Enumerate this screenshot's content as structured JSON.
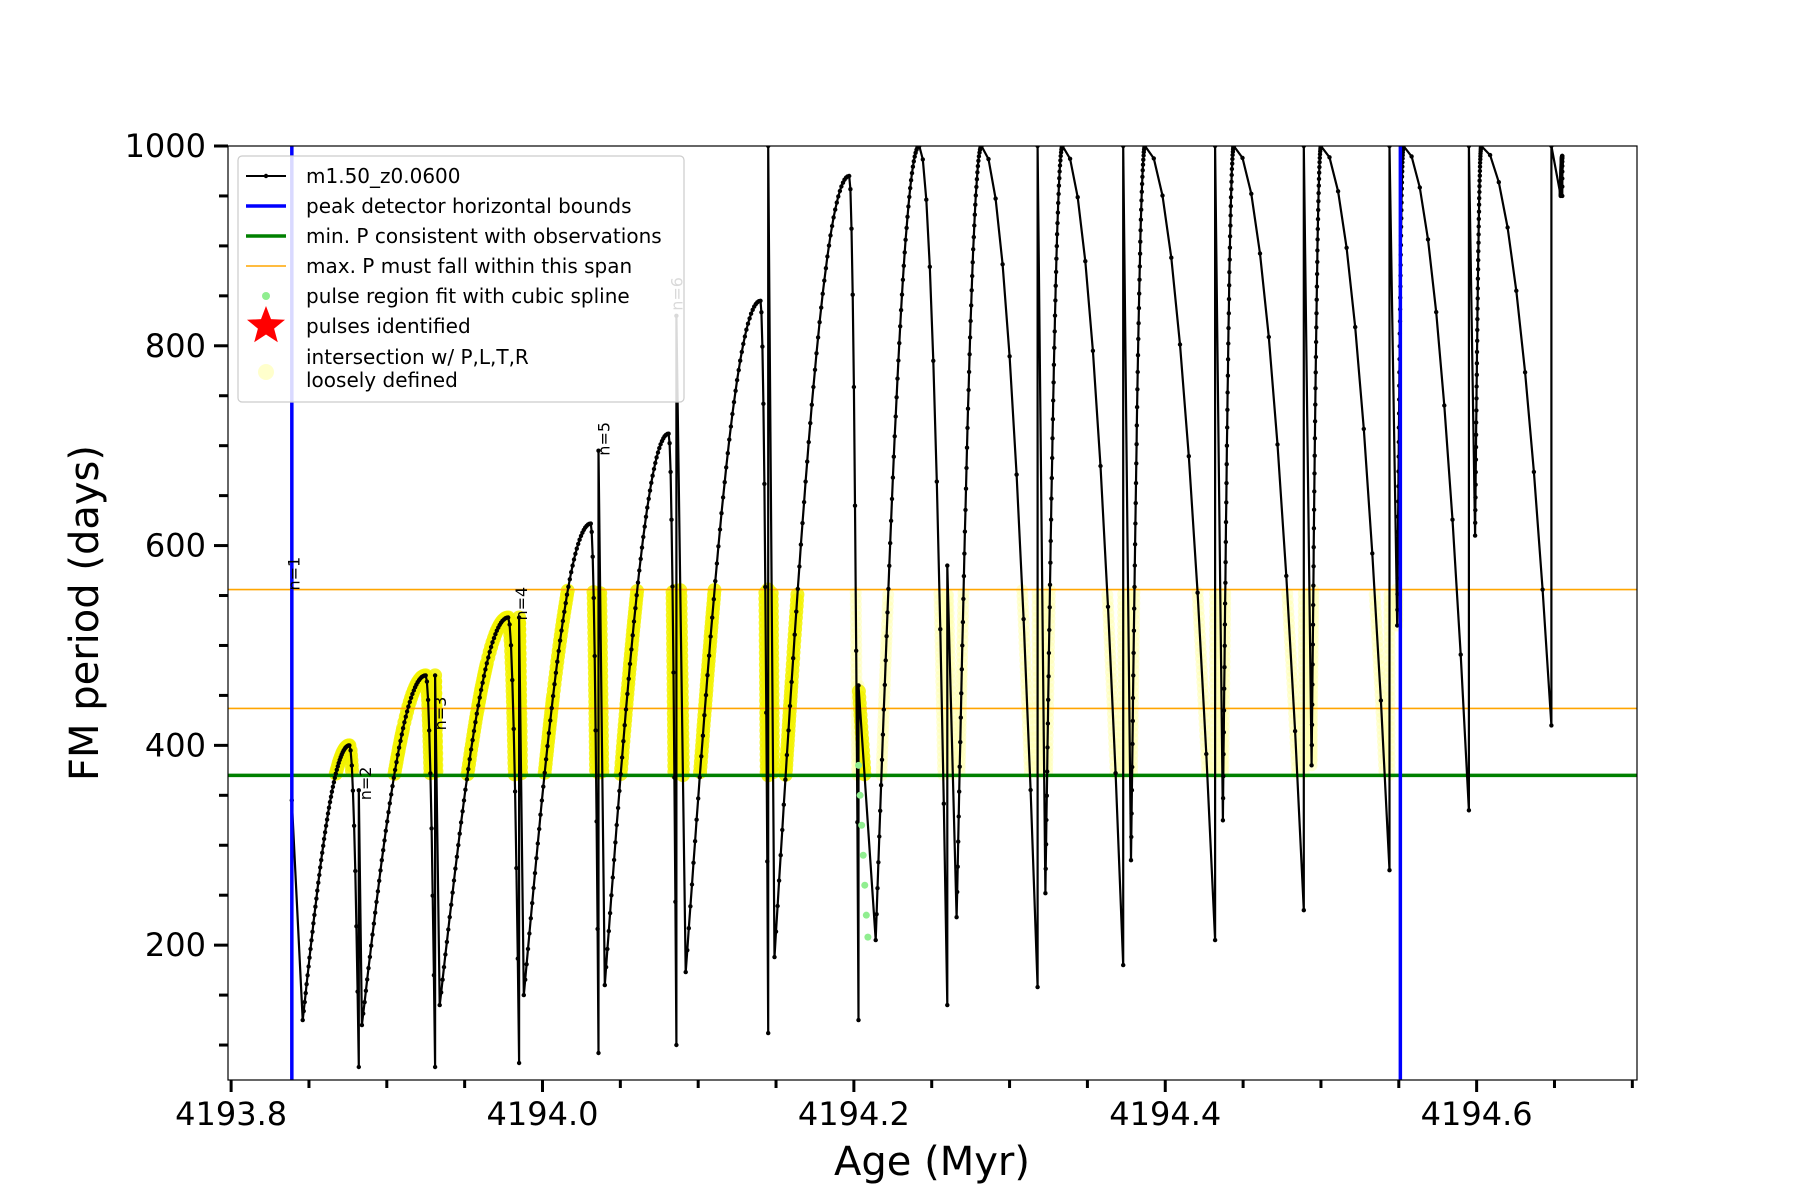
{
  "chart_data": {
    "type": "line",
    "title": "",
    "xlabel": "Age (Myr)",
    "ylabel": "FM period (days)",
    "xlim": [
      4193.798,
      4194.703
    ],
    "ylim": [
      65,
      1000
    ],
    "xticks": [
      4193.8,
      4194.0,
      4194.2,
      4194.4,
      4194.6
    ],
    "xtick_labels": [
      "4193.8",
      "4194.0",
      "4194.2",
      "4194.4",
      "4194.6"
    ],
    "yticks": [
      200,
      400,
      600,
      800,
      1000
    ],
    "ytick_labels": [
      "200",
      "400",
      "600",
      "800",
      "1000"
    ],
    "grid": false,
    "legend_position": "top-left",
    "legend": [
      {
        "label": "m1.50_z0.0600",
        "kind": "line-marker",
        "color": "#000000"
      },
      {
        "label": "peak detector horizontal bounds",
        "kind": "line",
        "color": "#0000ff"
      },
      {
        "label": "min. P consistent with observations",
        "kind": "line",
        "color": "#008000"
      },
      {
        "label": "max. P must fall within this span",
        "kind": "line",
        "color": "#ffa500"
      },
      {
        "label": "pulse region fit with cubic spline",
        "kind": "point",
        "color": "#90ee90"
      },
      {
        "label": "pulses identified",
        "kind": "star",
        "color": "#ff0000"
      },
      {
        "label": "intersection w/ P,L,T,R\nloosely defined",
        "kind": "circle",
        "color": "#ffffcc"
      }
    ],
    "reference_lines": {
      "vertical_peak_bounds": [
        4193.839,
        4194.551
      ],
      "min_period": 370,
      "max_period_span": [
        437,
        556
      ]
    },
    "colors": {
      "model": "#000000",
      "peak_bounds": "#0000ff",
      "min_period": "#008000",
      "max_period_span": "#ffa500",
      "spline": "#90ee90",
      "intersection_dense": "#f2f200",
      "intersection_light": "#ffffb0"
    },
    "series": [
      {
        "name": "m1.50_z0.0600",
        "type": "pulse-cycles",
        "cycles": [
          {
            "start": 4193.839,
            "spike": 345,
            "dip_age": 4193.846,
            "dip": 125,
            "peak_age": 4193.876,
            "peak": 400,
            "end": 4193.882,
            "after_dip": 78
          },
          {
            "start": 4193.882,
            "spike": 355,
            "dip_age": 4193.884,
            "dip": 120,
            "peak_age": 4193.925,
            "peak": 470,
            "end": 4193.931,
            "after_dip": 78
          },
          {
            "start": 4193.931,
            "spike": 470,
            "dip_age": 4193.934,
            "dip": 140,
            "peak_age": 4193.978,
            "peak": 528,
            "end": 4193.985,
            "after_dip": 82
          },
          {
            "start": 4193.985,
            "spike": 528,
            "dip_age": 4193.988,
            "dip": 150,
            "peak_age": 4194.031,
            "peak": 622,
            "end": 4194.036,
            "after_dip": 92
          },
          {
            "start": 4194.036,
            "spike": 695,
            "dip_age": 4194.04,
            "dip": 160,
            "peak_age": 4194.081,
            "peak": 712,
            "end": 4194.086,
            "after_dip": 100
          },
          {
            "start": 4194.086,
            "spike": 830,
            "dip_age": 4194.092,
            "dip": 173,
            "peak_age": 4194.14,
            "peak": 845,
            "end": 4194.145,
            "after_dip": 112
          },
          {
            "start": 4194.145,
            "spike": 1000,
            "dip_age": 4194.149,
            "dip": 188,
            "peak_age": 4194.197,
            "peak": 970,
            "end": 4194.203,
            "after_dip": 125
          },
          {
            "start": 4194.203,
            "spike": 460,
            "dip_age": 4194.214,
            "dip": 205,
            "peak_age": 4194.242,
            "peak": 1000,
            "end": 4194.26,
            "after_dip": 140
          },
          {
            "start": 4194.26,
            "spike": 580,
            "dip_age": 4194.266,
            "dip": 228,
            "peak_age": 4194.282,
            "peak": 1000,
            "end": 4194.318,
            "after_dip": 158
          },
          {
            "start": 4194.318,
            "spike": 1000,
            "dip_age": 4194.323,
            "dip": 252,
            "peak_age": 4194.334,
            "peak": 1000,
            "end": 4194.373,
            "after_dip": 180
          },
          {
            "start": 4194.373,
            "spike": 1000,
            "dip_age": 4194.378,
            "dip": 285,
            "peak_age": 4194.387,
            "peak": 1000,
            "end": 4194.432,
            "after_dip": 205
          },
          {
            "start": 4194.432,
            "spike": 1000,
            "dip_age": 4194.437,
            "dip": 325,
            "peak_age": 4194.444,
            "peak": 1000,
            "end": 4194.489,
            "after_dip": 235
          },
          {
            "start": 4194.489,
            "spike": 1000,
            "dip_age": 4194.494,
            "dip": 380,
            "peak_age": 4194.5,
            "peak": 1000,
            "end": 4194.544,
            "after_dip": 275
          },
          {
            "start": 4194.544,
            "spike": 1000,
            "dip_age": 4194.549,
            "dip": 520,
            "peak_age": 4194.553,
            "peak": 1000,
            "end": 4194.595,
            "after_dip": 335
          },
          {
            "start": 4194.595,
            "spike": 1000,
            "dip_age": 4194.599,
            "dip": 610,
            "peak_age": 4194.603,
            "peak": 1000,
            "end": 4194.648,
            "after_dip": 420
          },
          {
            "start": 4194.648,
            "spike": 1000,
            "dip_age": 4194.654,
            "dip": 950,
            "peak_age": 4194.655,
            "peak": 990,
            "end": 4194.655,
            "after_dip": 950
          }
        ]
      },
      {
        "name": "pulse region fit with cubic spline",
        "type": "scatter",
        "x": [
          4194.203,
          4194.204,
          4194.205,
          4194.206,
          4194.207,
          4194.208,
          4194.209
        ],
        "y": [
          380,
          350,
          320,
          290,
          260,
          230,
          208
        ]
      }
    ],
    "pulse_labels": [
      {
        "text": "n=1",
        "x": 4193.844,
        "y": 555
      },
      {
        "text": "n=2",
        "x": 4193.89,
        "y": 345
      },
      {
        "text": "n=3",
        "x": 4193.938,
        "y": 415
      },
      {
        "text": "n=4",
        "x": 4193.99,
        "y": 525
      },
      {
        "text": "n=5",
        "x": 4194.043,
        "y": 690
      },
      {
        "text": "n=6",
        "x": 4194.09,
        "y": 835
      }
    ]
  }
}
